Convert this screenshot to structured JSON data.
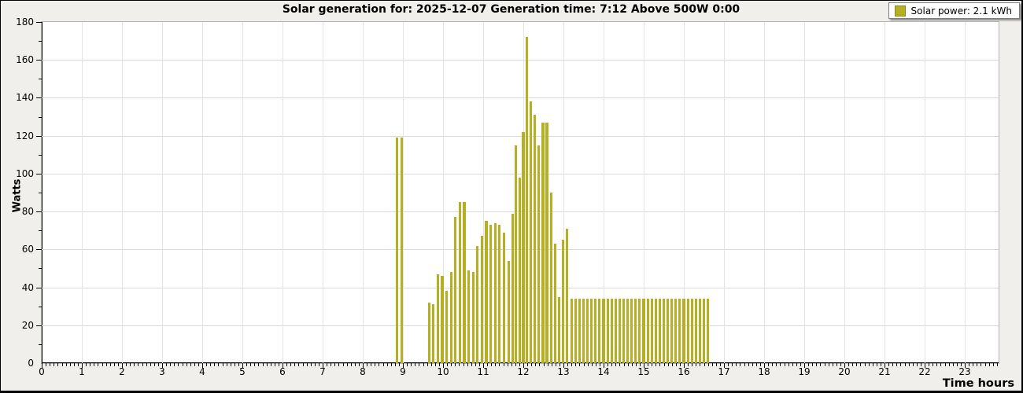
{
  "chart": {
    "title": "Solar generation for: 2025-12-07 Generation time: 7:12 Above 500W 0:00",
    "legend": {
      "label": "Solar power: 2.1 kWh"
    },
    "y_axis_label": "Watts",
    "x_axis_label": "Time hours"
  },
  "colors": {
    "bar": "#b5b021",
    "bar_border": "#8f8a12",
    "figure_background": "#f1efec",
    "plot_background": "#ffffff",
    "hgrid": "#d9d9d9",
    "vgrid": "#e4e4e4",
    "axis": "#000000"
  },
  "chart_data": {
    "type": "bar",
    "title": "Solar generation for: 2025-12-07 Generation time: 7:12 Above 500W 0:00",
    "xlabel": "Time hours",
    "ylabel": "Watts",
    "xlim": [
      0,
      23.84
    ],
    "ylim": [
      0,
      180
    ],
    "x_ticks": [
      0,
      1,
      2,
      3,
      4,
      5,
      6,
      7,
      8,
      9,
      10,
      11,
      12,
      13,
      14,
      15,
      16,
      17,
      18,
      19,
      20,
      21,
      22,
      23
    ],
    "y_ticks": [
      0,
      20,
      40,
      60,
      80,
      100,
      120,
      140,
      160,
      180
    ],
    "x_minor_step": 0.1,
    "y_minor_step": 10,
    "grid": true,
    "legend_position": "top-right",
    "legend_entries": [
      "Solar power: 2.1 kWh"
    ],
    "units": "Watts vs hour of day",
    "bars": [
      [
        8.85,
        119
      ],
      [
        8.97,
        119
      ],
      [
        9.65,
        32
      ],
      [
        9.76,
        31
      ],
      [
        9.87,
        47
      ],
      [
        9.98,
        46
      ],
      [
        10.09,
        38
      ],
      [
        10.2,
        48
      ],
      [
        10.31,
        77
      ],
      [
        10.42,
        85
      ],
      [
        10.53,
        85
      ],
      [
        10.64,
        49
      ],
      [
        10.75,
        48
      ],
      [
        10.86,
        62
      ],
      [
        10.97,
        67
      ],
      [
        11.08,
        75
      ],
      [
        11.19,
        73
      ],
      [
        11.3,
        74
      ],
      [
        11.41,
        73
      ],
      [
        11.52,
        69
      ],
      [
        11.63,
        54
      ],
      [
        11.73,
        79
      ],
      [
        11.82,
        115
      ],
      [
        11.91,
        98
      ],
      [
        12.0,
        122
      ],
      [
        12.09,
        172
      ],
      [
        12.19,
        138
      ],
      [
        12.29,
        131
      ],
      [
        12.39,
        115
      ],
      [
        12.49,
        127
      ],
      [
        12.59,
        127
      ],
      [
        12.69,
        90
      ],
      [
        12.79,
        63
      ],
      [
        12.89,
        35
      ],
      [
        12.99,
        65
      ],
      [
        13.09,
        71
      ],
      [
        13.2,
        34
      ],
      [
        13.3,
        34
      ],
      [
        13.4,
        34
      ],
      [
        13.5,
        34
      ],
      [
        13.6,
        34
      ],
      [
        13.7,
        34
      ],
      [
        13.8,
        34
      ],
      [
        13.9,
        34
      ],
      [
        14.0,
        34
      ],
      [
        14.1,
        34
      ],
      [
        14.2,
        34
      ],
      [
        14.3,
        34
      ],
      [
        14.4,
        34
      ],
      [
        14.5,
        34
      ],
      [
        14.6,
        34
      ],
      [
        14.7,
        34
      ],
      [
        14.8,
        34
      ],
      [
        14.9,
        34
      ],
      [
        15.0,
        34
      ],
      [
        15.1,
        34
      ],
      [
        15.2,
        34
      ],
      [
        15.3,
        34
      ],
      [
        15.4,
        34
      ],
      [
        15.5,
        34
      ],
      [
        15.6,
        34
      ],
      [
        15.7,
        34
      ],
      [
        15.8,
        34
      ],
      [
        15.9,
        34
      ],
      [
        16.0,
        34
      ],
      [
        16.1,
        34
      ],
      [
        16.2,
        34
      ],
      [
        16.3,
        34
      ],
      [
        16.4,
        34
      ],
      [
        16.5,
        34
      ],
      [
        16.6,
        34
      ]
    ]
  }
}
